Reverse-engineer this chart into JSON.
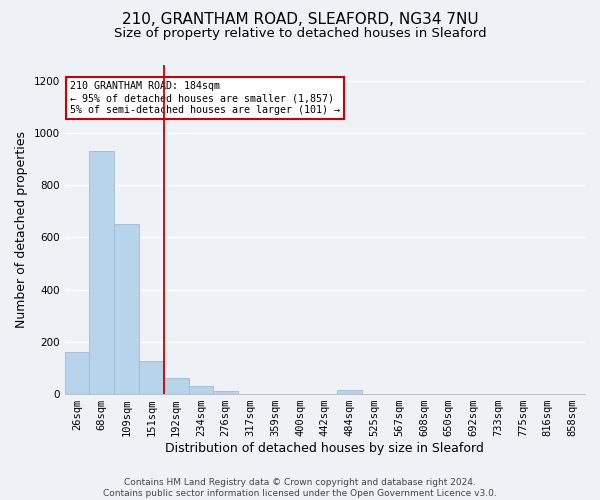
{
  "title": "210, GRANTHAM ROAD, SLEAFORD, NG34 7NU",
  "subtitle": "Size of property relative to detached houses in Sleaford",
  "xlabel": "Distribution of detached houses by size in Sleaford",
  "ylabel": "Number of detached properties",
  "bar_color": "#b8d4ea",
  "bar_edge_color": "#9bbbd4",
  "background_color": "#eef2f7",
  "grid_color": "#ffffff",
  "categories": [
    "26sqm",
    "68sqm",
    "109sqm",
    "151sqm",
    "192sqm",
    "234sqm",
    "276sqm",
    "317sqm",
    "359sqm",
    "400sqm",
    "442sqm",
    "484sqm",
    "525sqm",
    "567sqm",
    "608sqm",
    "650sqm",
    "692sqm",
    "733sqm",
    "775sqm",
    "816sqm",
    "858sqm"
  ],
  "values": [
    163,
    930,
    651,
    128,
    62,
    30,
    13,
    0,
    0,
    0,
    0,
    14,
    0,
    0,
    0,
    0,
    0,
    0,
    0,
    0,
    0
  ],
  "ylim": [
    0,
    1260
  ],
  "yticks": [
    0,
    200,
    400,
    600,
    800,
    1000,
    1200
  ],
  "annotation_box_text": "210 GRANTHAM ROAD: 184sqm\n← 95% of detached houses are smaller (1,857)\n5% of semi-detached houses are larger (101) →",
  "annotation_box_color": "#ffffff",
  "annotation_box_edge_color": "#cc0000",
  "vline_color": "#cc0000",
  "vline_x_index": 3,
  "footer_text": "Contains HM Land Registry data © Crown copyright and database right 2024.\nContains public sector information licensed under the Open Government Licence v3.0.",
  "title_fontsize": 11,
  "subtitle_fontsize": 9.5,
  "label_fontsize": 9,
  "tick_fontsize": 7.5,
  "footer_fontsize": 6.5
}
